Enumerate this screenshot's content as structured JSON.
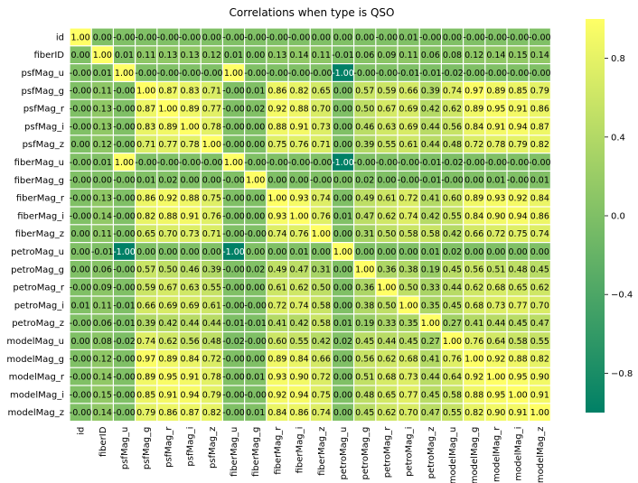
{
  "chart_data": {
    "type": "heatmap",
    "title": "Correlations when type is QSO",
    "labels": [
      "id",
      "fiberID",
      "psfMag_u",
      "psfMag_g",
      "psfMag_r",
      "psfMag_i",
      "psfMag_z",
      "fiberMag_u",
      "fiberMag_g",
      "fiberMag_r",
      "fiberMag_i",
      "fiberMag_z",
      "petroMag_u",
      "petroMag_g",
      "petroMag_r",
      "petroMag_i",
      "petroMag_z",
      "modelMag_u",
      "modelMag_g",
      "modelMag_r",
      "modelMag_i",
      "modelMag_z"
    ],
    "matrix_labels": [
      [
        "1.00",
        "0.00",
        "-0.00",
        "-0.00",
        "-0.00",
        "-0.00",
        "0.00",
        "-0.00",
        "-0.00",
        "-0.00",
        "-0.00",
        "0.00",
        "0.00",
        "0.00",
        "-0.00",
        "0.01",
        "-0.00",
        "0.00",
        "-0.00",
        "-0.00",
        "-0.00",
        "-0.00"
      ],
      [
        "0.00",
        "1.00",
        "0.01",
        "0.11",
        "0.13",
        "0.13",
        "0.12",
        "0.01",
        "0.00",
        "0.13",
        "0.14",
        "0.11",
        "-0.01",
        "0.06",
        "0.09",
        "0.11",
        "0.06",
        "0.08",
        "0.12",
        "0.14",
        "0.15",
        "0.14"
      ],
      [
        "-0.00",
        "0.01",
        "1.00",
        "-0.00",
        "-0.00",
        "-0.00",
        "-0.00",
        "1.00",
        "-0.00",
        "-0.00",
        "-0.00",
        "-0.00",
        "-1.00",
        "-0.00",
        "-0.00",
        "-0.01",
        "-0.01",
        "-0.02",
        "-0.00",
        "-0.00",
        "-0.00",
        "-0.00"
      ],
      [
        "-0.00",
        "0.11",
        "-0.00",
        "1.00",
        "0.87",
        "0.83",
        "0.71",
        "-0.00",
        "0.01",
        "0.86",
        "0.82",
        "0.65",
        "0.00",
        "0.57",
        "0.59",
        "0.66",
        "0.39",
        "0.74",
        "0.97",
        "0.89",
        "0.85",
        "0.79"
      ],
      [
        "-0.00",
        "0.13",
        "-0.00",
        "0.87",
        "1.00",
        "0.89",
        "0.77",
        "-0.00",
        "0.02",
        "0.92",
        "0.88",
        "0.70",
        "0.00",
        "0.50",
        "0.67",
        "0.69",
        "0.42",
        "0.62",
        "0.89",
        "0.95",
        "0.91",
        "0.86"
      ],
      [
        "-0.00",
        "0.13",
        "-0.00",
        "0.83",
        "0.89",
        "1.00",
        "0.78",
        "-0.00",
        "0.00",
        "0.88",
        "0.91",
        "0.73",
        "0.00",
        "0.46",
        "0.63",
        "0.69",
        "0.44",
        "0.56",
        "0.84",
        "0.91",
        "0.94",
        "0.87"
      ],
      [
        "0.00",
        "0.12",
        "-0.00",
        "0.71",
        "0.77",
        "0.78",
        "1.00",
        "-0.00",
        "0.00",
        "0.75",
        "0.76",
        "0.71",
        "0.00",
        "0.39",
        "0.55",
        "0.61",
        "0.44",
        "0.48",
        "0.72",
        "0.78",
        "0.79",
        "0.82"
      ],
      [
        "-0.00",
        "0.01",
        "1.00",
        "-0.00",
        "-0.00",
        "-0.00",
        "-0.00",
        "1.00",
        "-0.00",
        "-0.00",
        "-0.00",
        "-0.00",
        "-1.00",
        "-0.00",
        "-0.00",
        "-0.00",
        "-0.01",
        "-0.02",
        "-0.00",
        "-0.00",
        "-0.00",
        "-0.00"
      ],
      [
        "-0.00",
        "0.00",
        "-0.00",
        "0.01",
        "0.02",
        "0.00",
        "0.00",
        "-0.00",
        "1.00",
        "0.00",
        "0.00",
        "-0.00",
        "0.00",
        "0.02",
        "0.00",
        "-0.00",
        "-0.01",
        "-0.00",
        "0.00",
        "0.01",
        "-0.00",
        "0.01"
      ],
      [
        "-0.00",
        "0.13",
        "-0.00",
        "0.86",
        "0.92",
        "0.88",
        "0.75",
        "-0.00",
        "0.00",
        "1.00",
        "0.93",
        "0.74",
        "0.00",
        "0.49",
        "0.61",
        "0.72",
        "0.41",
        "0.60",
        "0.89",
        "0.93",
        "0.92",
        "0.84"
      ],
      [
        "-0.00",
        "0.14",
        "-0.00",
        "0.82",
        "0.88",
        "0.91",
        "0.76",
        "-0.00",
        "0.00",
        "0.93",
        "1.00",
        "0.76",
        "0.01",
        "0.47",
        "0.62",
        "0.74",
        "0.42",
        "0.55",
        "0.84",
        "0.90",
        "0.94",
        "0.86"
      ],
      [
        "0.00",
        "0.11",
        "-0.00",
        "0.65",
        "0.70",
        "0.73",
        "0.71",
        "-0.00",
        "-0.00",
        "0.74",
        "0.76",
        "1.00",
        "0.00",
        "0.31",
        "0.50",
        "0.58",
        "0.58",
        "0.42",
        "0.66",
        "0.72",
        "0.75",
        "0.74"
      ],
      [
        "0.00",
        "-0.01",
        "-1.00",
        "0.00",
        "0.00",
        "0.00",
        "0.00",
        "-1.00",
        "0.00",
        "0.00",
        "0.01",
        "0.00",
        "1.00",
        "0.00",
        "0.00",
        "0.00",
        "0.01",
        "0.02",
        "0.00",
        "0.00",
        "0.00",
        "0.00"
      ],
      [
        "0.00",
        "0.06",
        "-0.00",
        "0.57",
        "0.50",
        "0.46",
        "0.39",
        "-0.00",
        "0.02",
        "0.49",
        "0.47",
        "0.31",
        "0.00",
        "1.00",
        "0.36",
        "0.38",
        "0.19",
        "0.45",
        "0.56",
        "0.51",
        "0.48",
        "0.45"
      ],
      [
        "-0.00",
        "0.09",
        "-0.00",
        "0.59",
        "0.67",
        "0.63",
        "0.55",
        "-0.00",
        "0.00",
        "0.61",
        "0.62",
        "0.50",
        "0.00",
        "0.36",
        "1.00",
        "0.50",
        "0.33",
        "0.44",
        "0.62",
        "0.68",
        "0.65",
        "0.62"
      ],
      [
        "0.01",
        "0.11",
        "-0.01",
        "0.66",
        "0.69",
        "0.69",
        "0.61",
        "-0.00",
        "-0.00",
        "0.72",
        "0.74",
        "0.58",
        "0.00",
        "0.38",
        "0.50",
        "1.00",
        "0.35",
        "0.45",
        "0.68",
        "0.73",
        "0.77",
        "0.70"
      ],
      [
        "-0.00",
        "0.06",
        "-0.01",
        "0.39",
        "0.42",
        "0.44",
        "0.44",
        "-0.01",
        "-0.01",
        "0.41",
        "0.42",
        "0.58",
        "0.01",
        "0.19",
        "0.33",
        "0.35",
        "1.00",
        "0.27",
        "0.41",
        "0.44",
        "0.45",
        "0.47"
      ],
      [
        "0.00",
        "0.08",
        "-0.02",
        "0.74",
        "0.62",
        "0.56",
        "0.48",
        "-0.02",
        "-0.00",
        "0.60",
        "0.55",
        "0.42",
        "0.02",
        "0.45",
        "0.44",
        "0.45",
        "0.27",
        "1.00",
        "0.76",
        "0.64",
        "0.58",
        "0.55"
      ],
      [
        "-0.00",
        "0.12",
        "-0.00",
        "0.97",
        "0.89",
        "0.84",
        "0.72",
        "-0.00",
        "0.00",
        "0.89",
        "0.84",
        "0.66",
        "0.00",
        "0.56",
        "0.62",
        "0.68",
        "0.41",
        "0.76",
        "1.00",
        "0.92",
        "0.88",
        "0.82"
      ],
      [
        "-0.00",
        "0.14",
        "-0.00",
        "0.89",
        "0.95",
        "0.91",
        "0.78",
        "-0.00",
        "0.01",
        "0.93",
        "0.90",
        "0.72",
        "0.00",
        "0.51",
        "0.68",
        "0.73",
        "0.44",
        "0.64",
        "0.92",
        "1.00",
        "0.95",
        "0.90"
      ],
      [
        "-0.00",
        "0.15",
        "-0.00",
        "0.85",
        "0.91",
        "0.94",
        "0.79",
        "-0.00",
        "-0.00",
        "0.92",
        "0.94",
        "0.75",
        "0.00",
        "0.48",
        "0.65",
        "0.77",
        "0.45",
        "0.58",
        "0.88",
        "0.95",
        "1.00",
        "0.91"
      ],
      [
        "-0.00",
        "0.14",
        "-0.00",
        "0.79",
        "0.86",
        "0.87",
        "0.82",
        "-0.00",
        "0.01",
        "0.84",
        "0.86",
        "0.74",
        "0.00",
        "0.45",
        "0.62",
        "0.70",
        "0.47",
        "0.55",
        "0.82",
        "0.90",
        "0.91",
        "1.00"
      ]
    ],
    "colorbar": {
      "range": [
        -1,
        1
      ],
      "ticks": [
        0.8,
        0.4,
        0.0,
        -0.4,
        -0.8
      ],
      "tick_labels": [
        "0.8",
        "0.4",
        "0.0",
        "−0.4",
        "−0.8"
      ],
      "colormap": "summer",
      "low_color": "#008066",
      "high_color": "#ffff66"
    },
    "grid": false,
    "annotated": true
  }
}
